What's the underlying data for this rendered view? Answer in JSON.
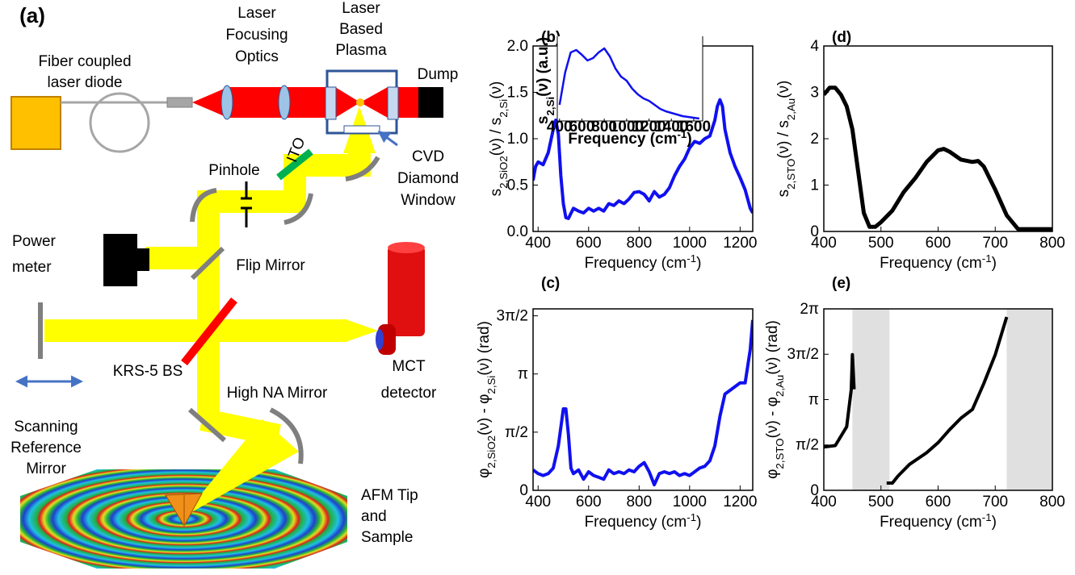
{
  "diagram": {
    "panel_label": "(a)",
    "labels": {
      "fiber_laser": [
        "Fiber coupled",
        "laser diode"
      ],
      "focusing_optics": [
        "Laser",
        "Focusing",
        "Optics"
      ],
      "plasma": [
        "Laser",
        "Based",
        "Plasma"
      ],
      "dump": [
        "Dump"
      ],
      "ito": [
        "ITO"
      ],
      "pinhole": [
        "Pinhole"
      ],
      "cvd_window": [
        "CVD",
        "Diamond",
        "Window"
      ],
      "power_meter": [
        "Power",
        "meter"
      ],
      "flip_mirror": [
        "Flip Mirror"
      ],
      "beam_splitter": [
        "KRS-5 BS"
      ],
      "detector": [
        "MCT",
        "detector"
      ],
      "reference_mirror": [
        "Scanning",
        "Reference",
        "Mirror"
      ],
      "high_na_mirror": [
        "High NA Mirror"
      ],
      "afm": [
        "AFM Tip",
        "and",
        "Sample"
      ]
    }
  },
  "chart_data": [
    {
      "type": "line",
      "panel_label": "(b)",
      "x": [
        380,
        390,
        400,
        420,
        440,
        460,
        470,
        480,
        490,
        500,
        510,
        520,
        540,
        560,
        580,
        600,
        620,
        640,
        660,
        680,
        700,
        720,
        740,
        760,
        780,
        800,
        820,
        840,
        860,
        880,
        900,
        920,
        940,
        960,
        980,
        1000,
        1020,
        1040,
        1060,
        1080,
        1100,
        1110,
        1120,
        1130,
        1140,
        1160,
        1180,
        1200,
        1220,
        1240,
        1250
      ],
      "series": [
        {
          "color": "#1010f0",
          "values": [
            0.55,
            0.7,
            0.75,
            0.72,
            0.85,
            1.1,
            1.2,
            1.05,
            0.6,
            0.3,
            0.15,
            0.14,
            0.25,
            0.22,
            0.2,
            0.25,
            0.22,
            0.25,
            0.22,
            0.3,
            0.28,
            0.33,
            0.3,
            0.35,
            0.42,
            0.43,
            0.4,
            0.33,
            0.43,
            0.37,
            0.4,
            0.47,
            0.6,
            0.7,
            0.78,
            0.9,
            0.97,
            0.95,
            1.0,
            1.03,
            1.2,
            1.35,
            1.42,
            1.35,
            1.1,
            0.85,
            0.7,
            0.58,
            0.45,
            0.25,
            0.2
          ]
        }
      ],
      "xlim": [
        380,
        1250
      ],
      "ylim": [
        0,
        2
      ],
      "xticks": [
        400,
        600,
        800,
        1000,
        1200
      ],
      "yticks": [
        {
          "value": 0,
          "label": "0.0"
        },
        {
          "value": 0.5,
          "label": "0.5"
        },
        {
          "value": 1,
          "label": "1.0"
        },
        {
          "value": 1.5,
          "label": "1.5"
        },
        {
          "value": 2,
          "label": "2.0"
        }
      ],
      "xlabel": [
        {
          "t": "Frequency (cm"
        },
        {
          "t": "-1",
          "sup": true
        },
        {
          "t": ")"
        }
      ],
      "ylabel": [
        {
          "t": "s"
        },
        {
          "t": "2,SiO2",
          "sub": true
        },
        {
          "t": "(ν) / s"
        },
        {
          "t": "2,Si",
          "sub": true
        },
        {
          "t": "(ν)"
        }
      ]
    },
    {
      "type": "line",
      "x": [
        400,
        450,
        500,
        550,
        600,
        650,
        700,
        750,
        800,
        850,
        900,
        950,
        1000,
        1050,
        1100,
        1150,
        1200,
        1250,
        1300,
        1350,
        1400,
        1450,
        1500,
        1550,
        1600,
        1650
      ],
      "series": [
        {
          "color": "#1010f0",
          "values": [
            0.2,
            0.6,
            0.85,
            0.88,
            0.82,
            0.75,
            0.78,
            0.85,
            0.9,
            0.8,
            0.65,
            0.55,
            0.5,
            0.4,
            0.33,
            0.28,
            0.25,
            0.2,
            0.15,
            0.12,
            0.1,
            0.08,
            0.06,
            0.05,
            0.04,
            0.03
          ]
        }
      ],
      "xlim": [
        380,
        1680
      ],
      "ylim": [
        0,
        1
      ],
      "xticks": [
        400,
        600,
        800,
        1000,
        1200,
        1400,
        1600
      ],
      "xlabel": [
        {
          "t": "Frequency (cm"
        },
        {
          "t": "-1",
          "sup": true
        },
        {
          "t": ")"
        }
      ],
      "ylabel": [
        {
          "t": "s"
        },
        {
          "t": "2,Si",
          "sub": true
        },
        {
          "t": "(ν) (a.u.)"
        }
      ]
    },
    {
      "type": "line",
      "panel_label": "(c)",
      "x": [
        380,
        400,
        420,
        440,
        460,
        480,
        500,
        510,
        520,
        530,
        540,
        560,
        580,
        600,
        620,
        640,
        660,
        680,
        700,
        720,
        740,
        760,
        780,
        800,
        820,
        840,
        860,
        880,
        900,
        920,
        940,
        960,
        980,
        1000,
        1020,
        1040,
        1060,
        1080,
        1100,
        1120,
        1140,
        1160,
        1180,
        1200,
        1220,
        1240,
        1250
      ],
      "series": [
        {
          "color": "#1010f0",
          "values": [
            0.55,
            0.45,
            0.4,
            0.45,
            0.6,
            1.2,
            2.2,
            2.2,
            1.5,
            0.6,
            0.45,
            0.55,
            0.3,
            0.5,
            0.4,
            0.35,
            0.3,
            0.55,
            0.45,
            0.5,
            0.45,
            0.55,
            0.5,
            0.65,
            0.75,
            0.5,
            0.15,
            0.45,
            0.5,
            0.45,
            0.5,
            0.4,
            0.45,
            0.4,
            0.5,
            0.6,
            0.65,
            0.8,
            1.2,
            2.0,
            2.6,
            2.7,
            2.8,
            2.9,
            2.9,
            3.8,
            4.6
          ]
        }
      ],
      "xlim": [
        380,
        1250
      ],
      "ylim": [
        0,
        4.9
      ],
      "xticks": [
        400,
        600,
        800,
        1000,
        1200
      ],
      "yticks": [
        0,
        {
          "value": 1.5708,
          "label": "π/2"
        },
        {
          "value": 3.1416,
          "label": "π"
        },
        {
          "value": 4.7124,
          "label": "3π/2"
        }
      ],
      "xlabel": [
        {
          "t": "Frequency (cm"
        },
        {
          "t": "-1",
          "sup": true
        },
        {
          "t": ")"
        }
      ],
      "ylabel": [
        {
          "t": "φ"
        },
        {
          "t": "2,SiO2",
          "sub": true
        },
        {
          "t": "(ν) - φ"
        },
        {
          "t": "2,Si",
          "sub": true
        },
        {
          "t": "(ν) (rad)"
        }
      ]
    },
    {
      "type": "line",
      "panel_label": "(d)",
      "x": [
        400,
        410,
        420,
        430,
        440,
        450,
        460,
        470,
        480,
        490,
        500,
        520,
        540,
        560,
        580,
        600,
        610,
        620,
        640,
        660,
        670,
        680,
        700,
        720,
        740,
        760,
        780,
        800
      ],
      "series": [
        {
          "color": "#000000",
          "values": [
            2.95,
            3.1,
            3.1,
            2.95,
            2.7,
            2.2,
            1.3,
            0.4,
            0.1,
            0.1,
            0.2,
            0.45,
            0.85,
            1.15,
            1.5,
            1.75,
            1.78,
            1.72,
            1.55,
            1.5,
            1.52,
            1.4,
            0.9,
            0.35,
            0.05,
            0.05,
            0.05,
            0.05
          ]
        }
      ],
      "xlim": [
        400,
        800
      ],
      "ylim": [
        0,
        4
      ],
      "xticks": [
        400,
        500,
        600,
        700,
        800
      ],
      "yticks": [
        0,
        1,
        2,
        3,
        4
      ],
      "xlabel": [
        {
          "t": "Frequency (cm"
        },
        {
          "t": "-1",
          "sup": true
        },
        {
          "t": ")"
        }
      ],
      "ylabel": [
        {
          "t": "s"
        },
        {
          "t": "2,STO",
          "sub": true
        },
        {
          "t": "(ν) / s"
        },
        {
          "t": "2,Au",
          "sub": true
        },
        {
          "t": "(ν)"
        }
      ]
    },
    {
      "type": "line",
      "panel_label": "(e)",
      "x": [
        400,
        420,
        440,
        448,
        450,
        453,
        480,
        510,
        520,
        530,
        550,
        580,
        600,
        620,
        640,
        660,
        680,
        700,
        720
      ],
      "series": [
        {
          "color": "#000000",
          "values": [
            1.5,
            1.55,
            2.2,
            3.5,
            4.7,
            3.5,
            null,
            0.25,
            0.25,
            0.5,
            0.9,
            1.3,
            1.65,
            2.1,
            2.5,
            2.8,
            3.7,
            4.7,
            6.0
          ]
        }
      ],
      "shaded_ranges": [
        [
          450,
          515
        ],
        [
          720,
          800
        ]
      ],
      "shade_color": "#e0e0e0",
      "xlim": [
        400,
        800
      ],
      "ylim": [
        0,
        6.2832
      ],
      "xticks": [
        400,
        500,
        600,
        700,
        800
      ],
      "yticks": [
        0,
        {
          "value": 1.5708,
          "label": "π/2"
        },
        {
          "value": 3.1416,
          "label": "π"
        },
        {
          "value": 4.7124,
          "label": "3π/2"
        },
        {
          "value": 6.2832,
          "label": "2π"
        }
      ],
      "xlabel": [
        {
          "t": "Frequency (cm"
        },
        {
          "t": "-1",
          "sup": true
        },
        {
          "t": ")"
        }
      ],
      "ylabel": [
        {
          "t": "φ"
        },
        {
          "t": "2,STO",
          "sub": true
        },
        {
          "t": "(ν) - φ"
        },
        {
          "t": "2,Au",
          "sub": true
        },
        {
          "t": "(ν) (rad)"
        }
      ]
    }
  ]
}
